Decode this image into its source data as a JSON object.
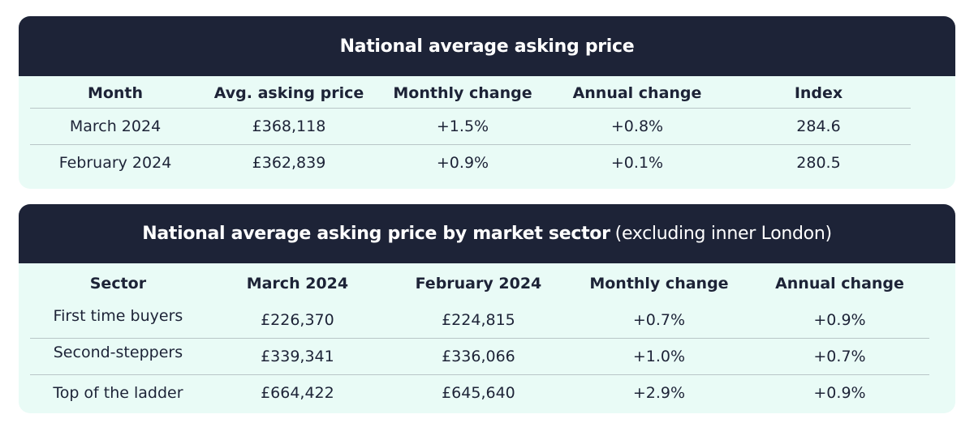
{
  "national": {
    "title": "National average asking price",
    "columns": [
      "Month",
      "Avg. asking price",
      "Monthly change",
      "Annual change",
      "Index"
    ],
    "rows": [
      [
        "March 2024",
        "£368,118",
        "+1.5%",
        "+0.8%",
        "284.6"
      ],
      [
        "February 2024",
        "£362,839",
        "+0.9%",
        "+0.1%",
        "280.5"
      ]
    ]
  },
  "sector": {
    "title_bold": "National average asking price by market sector",
    "title_light": "(excluding inner London)",
    "columns": [
      "Sector",
      "March 2024",
      "February 2024",
      "Monthly change",
      "Annual change"
    ],
    "rows": [
      [
        "First time buyers",
        "£226,370",
        "£224,815",
        "+0.7%",
        "+0.9%"
      ],
      [
        "Second-steppers",
        "£339,341",
        "£336,066",
        "+1.0%",
        "+0.7%"
      ],
      [
        "Top of the ladder",
        "£664,422",
        "£645,640",
        "+2.9%",
        "+0.9%"
      ]
    ]
  },
  "colors": {
    "header_background": "#1d2337",
    "card_background": "#e9fbf6",
    "row_divider": "#b9c6c7"
  }
}
